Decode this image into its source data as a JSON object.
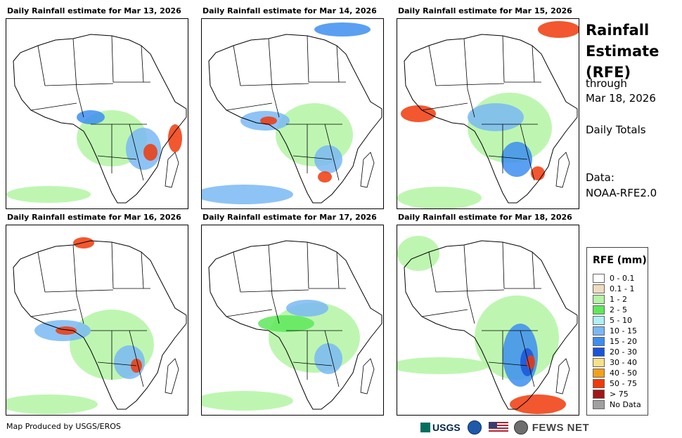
{
  "panels": [
    {
      "title": "Daily Rainfall estimate for Mar 13, 2026"
    },
    {
      "title": "Daily Rainfall estimate for Mar 14, 2026"
    },
    {
      "title": "Daily Rainfall estimate for Mar 15, 2026"
    },
    {
      "title": "Daily Rainfall estimate for Mar 16, 2026"
    },
    {
      "title": "Daily Rainfall estimate for Mar 17, 2026"
    },
    {
      "title": "Daily Rainfall estimate for Mar 18, 2026"
    }
  ],
  "side": {
    "title_line1": "Rainfall",
    "title_line2": "Estimate",
    "title_line3": "(RFE)",
    "through": "through",
    "date": "Mar 18, 2026",
    "totals": "Daily Totals",
    "data_label": "Data:",
    "data_source": "NOAA-RFE2.0"
  },
  "legend": {
    "title": "RFE (mm)",
    "items": [
      {
        "label": "0 - 0.1",
        "color": "#ffffff"
      },
      {
        "label": "0.1 - 1",
        "color": "#eedcbf"
      },
      {
        "label": "1 - 2",
        "color": "#b3f5a3"
      },
      {
        "label": "2 - 5",
        "color": "#5ee85a"
      },
      {
        "label": "5 - 10",
        "color": "#b0f0f5"
      },
      {
        "label": "10 - 15",
        "color": "#7ab8f5"
      },
      {
        "label": "15 - 20",
        "color": "#3d8ef0"
      },
      {
        "label": "20 - 30",
        "color": "#1a54d8"
      },
      {
        "label": "30 - 40",
        "color": "#f7e08a"
      },
      {
        "label": "40 - 50",
        "color": "#f2a01a"
      },
      {
        "label": "50 - 75",
        "color": "#f03a0a"
      },
      {
        "label": "> 75",
        "color": "#a01818"
      },
      {
        "label": "No Data",
        "color": "#a0a0a0"
      }
    ]
  },
  "footer": {
    "credit": "Map Produced by USGS/EROS",
    "usgs": "USGS",
    "fews": "FEWS NET"
  }
}
